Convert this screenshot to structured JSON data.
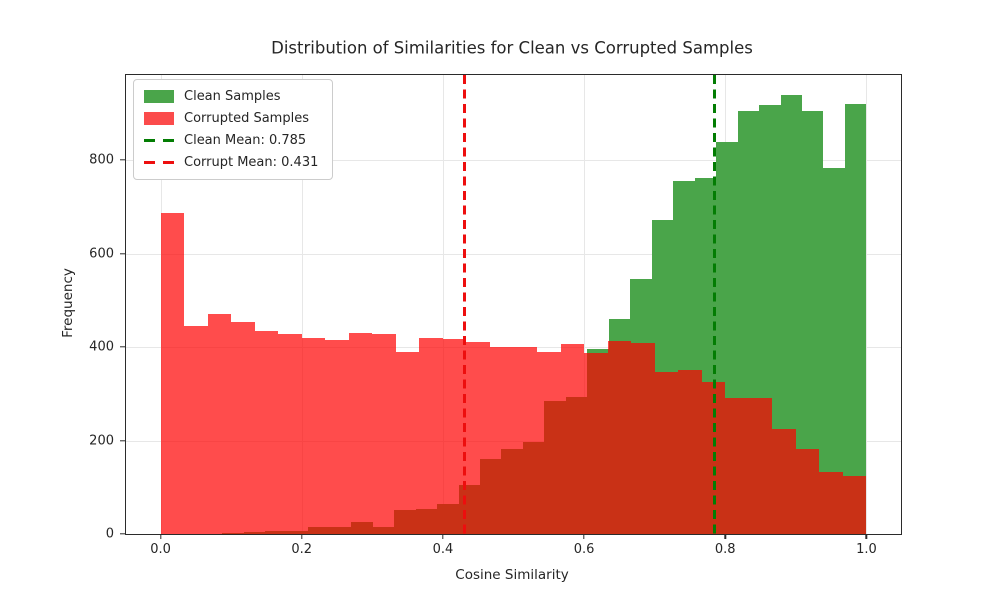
{
  "chart_data": {
    "type": "bar",
    "subtype": "overlapping-histograms",
    "title": "Distribution of Similarities for Clean vs Corrupted Samples",
    "xlabel": "Cosine Similarity",
    "ylabel": "Frequency",
    "xlim": [
      -0.049,
      1.049
    ],
    "ylim": [
      0,
      982
    ],
    "grid": true,
    "grid_color": "#e7e7e7",
    "legend_position": "upper-left",
    "xticks": [
      {
        "v": 0.0,
        "label": "0.0"
      },
      {
        "v": 0.2,
        "label": "0.2"
      },
      {
        "v": 0.4,
        "label": "0.4"
      },
      {
        "v": 0.6,
        "label": "0.6"
      },
      {
        "v": 0.8,
        "label": "0.8"
      },
      {
        "v": 1.0,
        "label": "1.0"
      }
    ],
    "yticks": [
      {
        "v": 0,
        "label": "0"
      },
      {
        "v": 200,
        "label": "200"
      },
      {
        "v": 400,
        "label": "400"
      },
      {
        "v": 600,
        "label": "600"
      },
      {
        "v": 800,
        "label": "800"
      }
    ],
    "series": [
      {
        "name": "Clean Samples",
        "color_hex": "#4AA54A",
        "fill": "#4AA54A",
        "bin_start": 0.0876,
        "bin_width": 0.030413,
        "values": [
          2,
          4,
          6,
          7,
          14,
          15,
          25,
          15,
          52,
          54,
          64,
          105,
          160,
          182,
          196,
          284,
          294,
          396,
          460,
          545,
          671,
          755,
          762,
          838,
          905,
          917,
          940,
          905,
          784,
          921
        ]
      },
      {
        "name": "Corrupted Samples",
        "color_hex": "#FB4B4B",
        "fill": "rgba(255,0,0,0.7)",
        "overlap_color_hex": "#C93217",
        "bin_start": 0.0,
        "bin_width": 0.033333,
        "values": [
          687,
          444,
          470,
          453,
          435,
          428,
          420,
          415,
          429,
          428,
          390,
          419,
          417,
          410,
          400,
          400,
          390,
          407,
          388,
          413,
          408,
          347,
          351,
          325,
          290,
          292,
          225,
          182,
          133,
          125
        ]
      }
    ],
    "vlines": [
      {
        "name": "clean-mean-line",
        "x": 0.785,
        "color": "#037d03",
        "style": "dashed"
      },
      {
        "name": "corrupt-mean-line",
        "x": 0.431,
        "color": "#ed0e0e",
        "style": "dashed"
      }
    ],
    "legend": [
      {
        "label": "Clean Samples",
        "sample": "patch"
      },
      {
        "label": "Corrupted Samples",
        "sample": "patch"
      },
      {
        "label": "Clean Mean: 0.785",
        "sample": "dashed-line"
      },
      {
        "label": "Corrupt Mean: 0.431",
        "sample": "dashed-line"
      }
    ]
  }
}
